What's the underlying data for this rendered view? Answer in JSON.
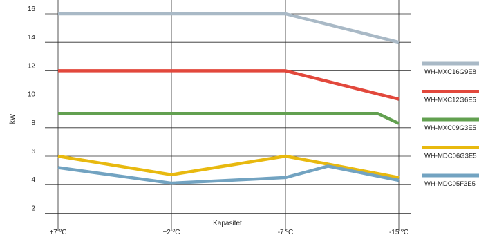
{
  "chart_data": {
    "type": "line",
    "xlabel": "Kapasitet",
    "ylabel": "kW",
    "categories": [
      "+7 ºC",
      "+2 ºC",
      "-7 ºC",
      "-15 ºC"
    ],
    "x_positions": [
      7,
      2,
      -7,
      -15
    ],
    "ylim": [
      1,
      17
    ],
    "yticks": [
      2,
      4,
      6,
      8,
      10,
      12,
      14,
      16
    ],
    "grid": "both",
    "legend_position": "right",
    "series": [
      {
        "name": "WH-MXC16G9E8",
        "color": "#a9b9c6",
        "points": [
          [
            7,
            16
          ],
          [
            2,
            16
          ],
          [
            -7,
            16
          ],
          [
            -15,
            14
          ]
        ]
      },
      {
        "name": "WH-MXC12G6E5",
        "color": "#e2483c",
        "points": [
          [
            7,
            12
          ],
          [
            2,
            12
          ],
          [
            -7,
            12
          ],
          [
            -15,
            10
          ]
        ]
      },
      {
        "name": "WH-MXC09G3E5",
        "color": "#62a050",
        "points": [
          [
            7,
            9
          ],
          [
            2,
            9
          ],
          [
            -7,
            9
          ],
          [
            -13.5,
            9
          ],
          [
            -15,
            8.3
          ]
        ]
      },
      {
        "name": "WH-MDC06G3E5",
        "color": "#e8b90f",
        "points": [
          [
            7,
            6
          ],
          [
            2,
            4.7
          ],
          [
            -7,
            6
          ],
          [
            -15,
            4.5
          ]
        ]
      },
      {
        "name": "WH-MDC05F3E5",
        "color": "#72a3c1",
        "points": [
          [
            7,
            5.2
          ],
          [
            2,
            4.1
          ],
          [
            -7,
            4.5
          ],
          [
            -10,
            5.3
          ],
          [
            -15,
            4.3
          ]
        ]
      }
    ]
  }
}
